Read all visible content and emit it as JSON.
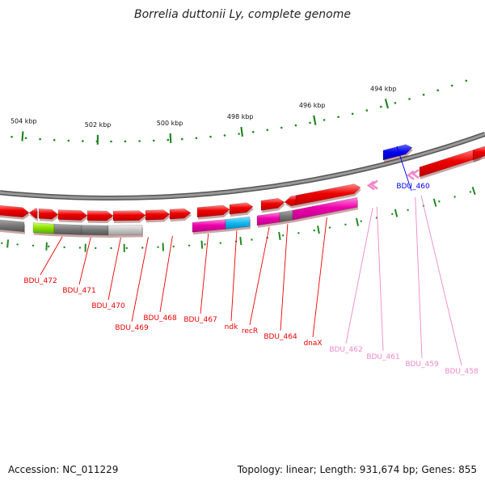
{
  "title": "Borrelia duttonii Ly, complete genome",
  "footer": {
    "accession": "Accession: NC_011229",
    "topology": "Topology: linear; Length: 931,674 bp; Genes: 855"
  },
  "scale_labels": [
    "504 kbp",
    "502 kbp",
    "500 kbp",
    "498 kbp",
    "496 kbp",
    "494 kbp"
  ],
  "gene_labels": [
    "BDU_472",
    "BDU_471",
    "BDU_470",
    "BDU_469",
    "BDU_468",
    "BDU_467",
    "ndk",
    "recR",
    "BDU_464",
    "dnaX",
    "BDU_462",
    "BDU_461",
    "BDU_459",
    "BDU_458",
    "BDU_460"
  ],
  "colors": {
    "red": "#ee0000",
    "magenta": "#ee00aa",
    "cyan": "#11bbee",
    "green": "#88dd00",
    "grey": "#777777",
    "light_grey": "#c0c0c0",
    "blue": "#0000ee",
    "pink": "#ee88cc",
    "tick_green": "#228822"
  }
}
